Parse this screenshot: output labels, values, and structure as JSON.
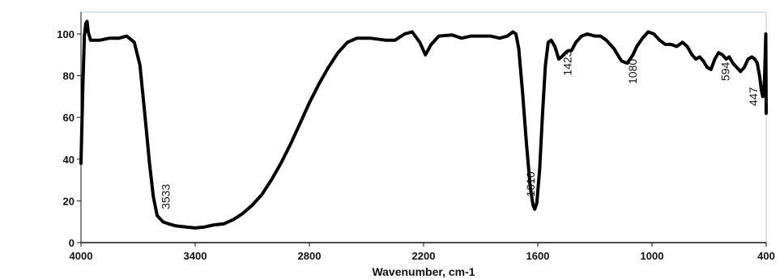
{
  "chart_data": {
    "type": "line",
    "title": "",
    "xlabel": "Wavenumber, cm-1",
    "ylabel": "",
    "xlim": [
      4000,
      400
    ],
    "ylim": [
      0,
      105
    ],
    "x_reversed": true,
    "grid": false,
    "xticks": [
      4000,
      3400,
      2800,
      2200,
      1600,
      1000,
      400
    ],
    "yticks": [
      0,
      20,
      40,
      60,
      80,
      100
    ],
    "series": [
      {
        "values": [
          [
            4000,
            38
          ],
          [
            3990,
            75
          ],
          [
            3982,
            99
          ],
          [
            3975,
            105
          ],
          [
            3968,
            106
          ],
          [
            3962,
            101
          ],
          [
            3950,
            97
          ],
          [
            3900,
            97
          ],
          [
            3850,
            98
          ],
          [
            3800,
            98
          ],
          [
            3760,
            99
          ],
          [
            3720,
            96
          ],
          [
            3690,
            85
          ],
          [
            3665,
            62
          ],
          [
            3640,
            38
          ],
          [
            3620,
            22
          ],
          [
            3600,
            13
          ],
          [
            3570,
            10
          ],
          [
            3540,
            9
          ],
          [
            3500,
            8
          ],
          [
            3450,
            7.5
          ],
          [
            3400,
            7
          ],
          [
            3350,
            7.5
          ],
          [
            3300,
            8.5
          ],
          [
            3250,
            9
          ],
          [
            3200,
            11
          ],
          [
            3150,
            14
          ],
          [
            3100,
            18
          ],
          [
            3050,
            23
          ],
          [
            3000,
            30
          ],
          [
            2950,
            38
          ],
          [
            2900,
            47
          ],
          [
            2850,
            57
          ],
          [
            2800,
            67
          ],
          [
            2750,
            76
          ],
          [
            2700,
            84
          ],
          [
            2650,
            91
          ],
          [
            2600,
            96
          ],
          [
            2550,
            98
          ],
          [
            2480,
            98
          ],
          [
            2400,
            97
          ],
          [
            2350,
            97
          ],
          [
            2300,
            100
          ],
          [
            2260,
            101
          ],
          [
            2220,
            96
          ],
          [
            2190,
            90
          ],
          [
            2160,
            95
          ],
          [
            2120,
            99
          ],
          [
            2050,
            99.5
          ],
          [
            2000,
            98
          ],
          [
            1950,
            99
          ],
          [
            1900,
            99
          ],
          [
            1850,
            99
          ],
          [
            1800,
            98
          ],
          [
            1760,
            99
          ],
          [
            1730,
            101
          ],
          [
            1715,
            100
          ],
          [
            1700,
            93
          ],
          [
            1680,
            72
          ],
          [
            1660,
            48
          ],
          [
            1640,
            27
          ],
          [
            1625,
            18
          ],
          [
            1616,
            16
          ],
          [
            1605,
            19
          ],
          [
            1590,
            35
          ],
          [
            1575,
            62
          ],
          [
            1560,
            85
          ],
          [
            1545,
            96
          ],
          [
            1530,
            97
          ],
          [
            1510,
            94
          ],
          [
            1490,
            88
          ],
          [
            1475,
            89
          ],
          [
            1455,
            91
          ],
          [
            1440,
            92
          ],
          [
            1423,
            92
          ],
          [
            1400,
            96
          ],
          [
            1370,
            99
          ],
          [
            1340,
            100
          ],
          [
            1300,
            99
          ],
          [
            1270,
            99
          ],
          [
            1240,
            97
          ],
          [
            1200,
            93
          ],
          [
            1160,
            87
          ],
          [
            1130,
            86
          ],
          [
            1100,
            90
          ],
          [
            1080,
            94
          ],
          [
            1050,
            98
          ],
          [
            1020,
            101
          ],
          [
            990,
            100
          ],
          [
            960,
            97
          ],
          [
            930,
            95
          ],
          [
            900,
            95
          ],
          [
            870,
            94
          ],
          [
            840,
            96
          ],
          [
            815,
            94
          ],
          [
            790,
            90
          ],
          [
            770,
            88
          ],
          [
            750,
            89
          ],
          [
            730,
            87
          ],
          [
            710,
            84
          ],
          [
            690,
            83
          ],
          [
            670,
            88
          ],
          [
            650,
            91
          ],
          [
            630,
            90
          ],
          [
            610,
            88
          ],
          [
            594,
            89
          ],
          [
            575,
            86
          ],
          [
            555,
            84
          ],
          [
            535,
            82
          ],
          [
            515,
            84
          ],
          [
            495,
            88
          ],
          [
            475,
            89
          ],
          [
            460,
            88
          ],
          [
            447,
            86
          ],
          [
            435,
            80
          ],
          [
            425,
            73
          ],
          [
            418,
            70
          ],
          [
            412,
            73
          ],
          [
            408,
            80
          ],
          [
            404,
            94
          ],
          [
            402,
            100
          ],
          [
            400,
            62
          ]
        ]
      }
    ],
    "annotations": [
      {
        "text": "3533",
        "x": 3533,
        "y": 22
      },
      {
        "text": "1616",
        "x": 1616,
        "y": 28
      },
      {
        "text": "1423",
        "x": 1423,
        "y": 86
      },
      {
        "text": "1080",
        "x": 1080,
        "y": 82
      },
      {
        "text": "594",
        "x": 594,
        "y": 82
      },
      {
        "text": "447",
        "x": 447,
        "y": 70
      }
    ]
  }
}
